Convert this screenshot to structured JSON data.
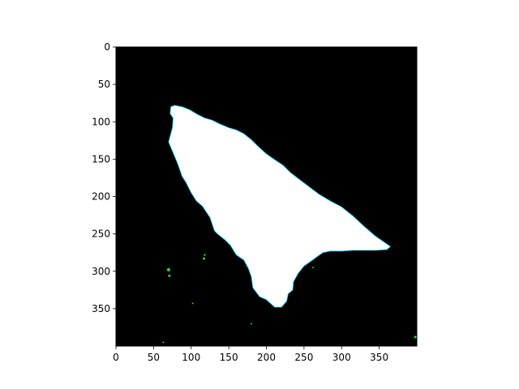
{
  "chart_data": {
    "type": "heatmap",
    "title": "",
    "xlabel": "",
    "ylabel": "",
    "xlim": [
      0,
      400
    ],
    "ylim": [
      400,
      0
    ],
    "y_inverted": true,
    "grid": false,
    "xticks": [
      0,
      50,
      100,
      150,
      200,
      250,
      300,
      350
    ],
    "yticks": [
      0,
      50,
      100,
      150,
      200,
      250,
      300,
      350
    ],
    "colors": {
      "background": "#000000",
      "mask": "#ffffff",
      "edge": "#00d2ff",
      "speck": "#22dd44"
    },
    "mask_outline": [
      [
        78,
        78
      ],
      [
        88,
        80
      ],
      [
        98,
        84
      ],
      [
        108,
        90
      ],
      [
        118,
        95
      ],
      [
        128,
        98
      ],
      [
        138,
        103
      ],
      [
        150,
        108
      ],
      [
        160,
        111
      ],
      [
        170,
        116
      ],
      [
        180,
        124
      ],
      [
        190,
        134
      ],
      [
        200,
        143
      ],
      [
        210,
        150
      ],
      [
        222,
        158
      ],
      [
        232,
        168
      ],
      [
        245,
        178
      ],
      [
        258,
        188
      ],
      [
        270,
        197
      ],
      [
        285,
        206
      ],
      [
        300,
        214
      ],
      [
        315,
        226
      ],
      [
        330,
        240
      ],
      [
        345,
        253
      ],
      [
        358,
        262
      ],
      [
        365,
        267
      ],
      [
        360,
        271
      ],
      [
        345,
        272
      ],
      [
        330,
        272
      ],
      [
        315,
        272
      ],
      [
        300,
        273
      ],
      [
        285,
        273
      ],
      [
        275,
        275
      ],
      [
        268,
        280
      ],
      [
        260,
        286
      ],
      [
        250,
        293
      ],
      [
        242,
        303
      ],
      [
        236,
        314
      ],
      [
        235,
        325
      ],
      [
        229,
        330
      ],
      [
        227,
        340
      ],
      [
        220,
        348
      ],
      [
        211,
        348
      ],
      [
        200,
        338
      ],
      [
        191,
        334
      ],
      [
        182,
        322
      ],
      [
        180,
        307
      ],
      [
        176,
        296
      ],
      [
        170,
        285
      ],
      [
        160,
        278
      ],
      [
        152,
        265
      ],
      [
        145,
        258
      ],
      [
        135,
        250
      ],
      [
        131,
        246
      ],
      [
        125,
        228
      ],
      [
        115,
        213
      ],
      [
        107,
        206
      ],
      [
        100,
        195
      ],
      [
        93,
        181
      ],
      [
        88,
        173
      ],
      [
        82,
        156
      ],
      [
        70,
        127
      ],
      [
        75,
        108
      ],
      [
        76,
        95
      ],
      [
        72,
        89
      ],
      [
        73,
        80
      ]
    ],
    "specks": [
      [
        70,
        298,
        2
      ],
      [
        71,
        306,
        1.5
      ],
      [
        117,
        283,
        1.5
      ],
      [
        118,
        278,
        1.2
      ],
      [
        102,
        343,
        1
      ],
      [
        180,
        370,
        1
      ],
      [
        63,
        395,
        1
      ],
      [
        398,
        388,
        1.5
      ],
      [
        262,
        295,
        1
      ]
    ]
  }
}
